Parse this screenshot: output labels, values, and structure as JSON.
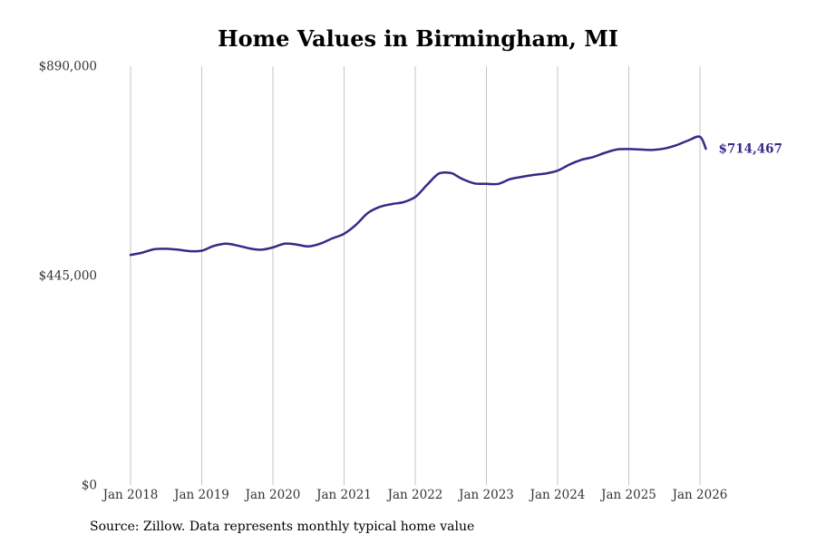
{
  "chart_data": {
    "type": "line",
    "title": "Home Values in Birmingham, MI",
    "xlabel": "",
    "ylabel": "",
    "ylim": [
      0,
      890000
    ],
    "y_ticks": [
      {
        "value": 0,
        "label": "$0"
      },
      {
        "value": 445000,
        "label": "$445,000"
      },
      {
        "value": 890000,
        "label": "$890,000"
      }
    ],
    "x_range": [
      2018.0,
      2026.083
    ],
    "x_ticks": [
      {
        "value": 2018,
        "label": "Jan 2018"
      },
      {
        "value": 2019,
        "label": "Jan 2019"
      },
      {
        "value": 2020,
        "label": "Jan 2020"
      },
      {
        "value": 2021,
        "label": "Jan 2021"
      },
      {
        "value": 2022,
        "label": "Jan 2022"
      },
      {
        "value": 2023,
        "label": "Jan 2023"
      },
      {
        "value": 2024,
        "label": "Jan 2024"
      },
      {
        "value": 2025,
        "label": "Jan 2025"
      },
      {
        "value": 2026,
        "label": "Jan 2026"
      }
    ],
    "grid": "vertical",
    "series": [
      {
        "name": "Typical home value",
        "color": "#352a87",
        "x": [
          2018.0,
          2018.167,
          2018.333,
          2018.5,
          2018.667,
          2018.833,
          2019.0,
          2019.167,
          2019.333,
          2019.5,
          2019.667,
          2019.833,
          2020.0,
          2020.167,
          2020.333,
          2020.5,
          2020.667,
          2020.833,
          2021.0,
          2021.167,
          2021.333,
          2021.5,
          2021.667,
          2021.833,
          2022.0,
          2022.167,
          2022.333,
          2022.5,
          2022.583,
          2022.667,
          2022.833,
          2023.0,
          2023.167,
          2023.333,
          2023.5,
          2023.667,
          2023.833,
          2024.0,
          2024.167,
          2024.333,
          2024.5,
          2024.667,
          2024.833,
          2025.0,
          2025.167,
          2025.333,
          2025.5,
          2025.667,
          2025.833,
          2026.0,
          2026.083
        ],
        "values": [
          489000,
          494000,
          501000,
          502000,
          500000,
          497000,
          498000,
          508000,
          513000,
          509000,
          503000,
          500000,
          505000,
          513000,
          511000,
          507000,
          513000,
          524000,
          534000,
          553000,
          578000,
          591000,
          597000,
          601000,
          612000,
          638000,
          662000,
          663000,
          657000,
          650000,
          641000,
          640000,
          640000,
          650000,
          655000,
          659000,
          662000,
          668000,
          681000,
          691000,
          697000,
          706000,
          713000,
          714000,
          713000,
          712000,
          715000,
          722000,
          732000,
          740000,
          714467
        ]
      }
    ],
    "annotations": [
      {
        "text": "$714,467",
        "x": 2026.083,
        "y": 714467,
        "color": "#352a87"
      }
    ]
  },
  "footer": {
    "source": "Source: Zillow. Data represents monthly typical home value"
  }
}
